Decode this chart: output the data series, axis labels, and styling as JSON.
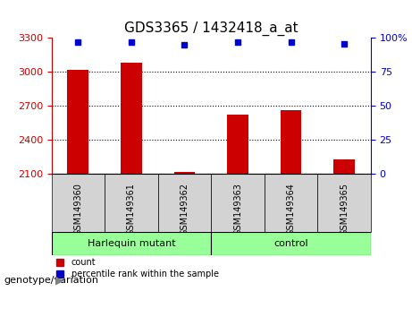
{
  "title": "GDS3365 / 1432418_a_at",
  "samples": [
    "GSM149360",
    "GSM149361",
    "GSM149362",
    "GSM149363",
    "GSM149364",
    "GSM149365"
  ],
  "counts": [
    3020,
    3080,
    2115,
    2620,
    2660,
    2230
  ],
  "percentile_ranks": [
    97,
    97,
    95,
    97,
    97,
    96
  ],
  "ylim_left": [
    2100,
    3300
  ],
  "yticks_left": [
    2100,
    2400,
    2700,
    3000,
    3300
  ],
  "ylim_right": [
    0,
    100
  ],
  "yticks_right": [
    0,
    25,
    50,
    75,
    100
  ],
  "ytick_labels_right": [
    "0",
    "25",
    "50",
    "75",
    "100%"
  ],
  "bar_color": "#cc0000",
  "dot_color": "#0000cc",
  "groups": [
    {
      "label": "Harlequin mutant",
      "samples": [
        0,
        1,
        2
      ]
    },
    {
      "label": "control",
      "samples": [
        3,
        4,
        5
      ]
    }
  ],
  "group_bg_color": "#99ff99",
  "sample_bg_color": "#d3d3d3",
  "legend_count_color": "#cc0000",
  "legend_pct_color": "#0000cc",
  "xlabel_text": "genotype/variation",
  "grid_color": "#000000",
  "left_tick_color": "#cc0000",
  "right_tick_color": "#0000cc"
}
